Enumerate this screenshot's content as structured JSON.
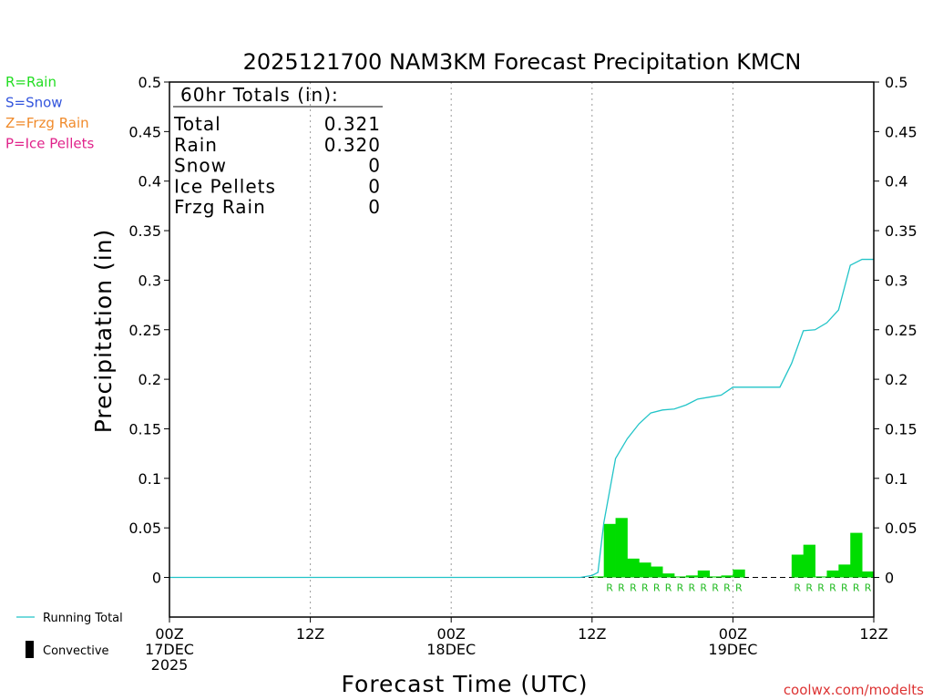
{
  "chart_data": {
    "type": "bar",
    "title": "2025121700 NAM3KM Forecast Precipitation KMCN",
    "xlabel": "Forecast Time (UTC)",
    "ylabel": "Precipitation (in)",
    "ylim": [
      -0.04,
      0.5
    ],
    "xlim_hours": [
      0,
      60
    ],
    "y_ticks": [
      0,
      0.05,
      0.1,
      0.15,
      0.2,
      0.25,
      0.3,
      0.35,
      0.4,
      0.45,
      0.5
    ],
    "y_tick_labels": [
      "0",
      "0.05",
      "0.1",
      "0.15",
      "0.2",
      "0.25",
      "0.3",
      "0.35",
      "0.4",
      "0.45",
      "0.5"
    ],
    "x_ticks": [
      {
        "hour": 0,
        "lines": [
          "00Z",
          "17DEC",
          "2025"
        ]
      },
      {
        "hour": 12,
        "lines": [
          "12Z"
        ]
      },
      {
        "hour": 24,
        "lines": [
          "00Z",
          "18DEC"
        ]
      },
      {
        "hour": 36,
        "lines": [
          "12Z"
        ]
      },
      {
        "hour": 48,
        "lines": [
          "00Z",
          "19DEC"
        ]
      },
      {
        "hour": 60,
        "lines": [
          "12Z"
        ]
      }
    ],
    "vertical_gridlines_hours": [
      12,
      24,
      36,
      48
    ],
    "bar_series": {
      "name": "Rain",
      "color": "#00dd00",
      "bars": [
        {
          "hour": 36,
          "value": 0.001,
          "label": ""
        },
        {
          "hour": 37,
          "value": 0.054,
          "label": "R"
        },
        {
          "hour": 38,
          "value": 0.06,
          "label": "R"
        },
        {
          "hour": 39,
          "value": 0.019,
          "label": "R"
        },
        {
          "hour": 40,
          "value": 0.015,
          "label": "R"
        },
        {
          "hour": 41,
          "value": 0.011,
          "label": "R"
        },
        {
          "hour": 42,
          "value": 0.004,
          "label": "R"
        },
        {
          "hour": 43,
          "value": 0.001,
          "label": "R"
        },
        {
          "hour": 44,
          "value": 0.002,
          "label": "R"
        },
        {
          "hour": 45,
          "value": 0.007,
          "label": "R"
        },
        {
          "hour": 46,
          "value": 0.001,
          "label": "R"
        },
        {
          "hour": 47,
          "value": 0.002,
          "label": "R"
        },
        {
          "hour": 48,
          "value": 0.008,
          "label": "R"
        },
        {
          "hour": 53,
          "value": 0.023,
          "label": "R"
        },
        {
          "hour": 54,
          "value": 0.033,
          "label": "R"
        },
        {
          "hour": 55,
          "value": 0.001,
          "label": "R"
        },
        {
          "hour": 56,
          "value": 0.007,
          "label": "R"
        },
        {
          "hour": 57,
          "value": 0.013,
          "label": "R"
        },
        {
          "hour": 58,
          "value": 0.045,
          "label": "R"
        },
        {
          "hour": 59,
          "value": 0.006,
          "label": "R"
        }
      ]
    },
    "line_series": {
      "name": "Running Total",
      "color": "#22c4c8",
      "points": [
        [
          0,
          0
        ],
        [
          35,
          0
        ],
        [
          36,
          0.002
        ],
        [
          36.5,
          0.005
        ],
        [
          37,
          0.055
        ],
        [
          38,
          0.12
        ],
        [
          39,
          0.14
        ],
        [
          40,
          0.155
        ],
        [
          41,
          0.166
        ],
        [
          42,
          0.169
        ],
        [
          43,
          0.17
        ],
        [
          44,
          0.174
        ],
        [
          45,
          0.18
        ],
        [
          46,
          0.182
        ],
        [
          47,
          0.184
        ],
        [
          48,
          0.192
        ],
        [
          52,
          0.192
        ],
        [
          53,
          0.216
        ],
        [
          54,
          0.249
        ],
        [
          55,
          0.25
        ],
        [
          56,
          0.257
        ],
        [
          57,
          0.27
        ],
        [
          58,
          0.315
        ],
        [
          59,
          0.321
        ],
        [
          60,
          0.321
        ]
      ]
    },
    "legend": {
      "top_left": [
        {
          "text": "R=Rain",
          "color": "#22dd22"
        },
        {
          "text": "S=Snow",
          "color": "#3355dd"
        },
        {
          "text": "Z=Frzg Rain",
          "color": "#f08a2a"
        },
        {
          "text": "P=Ice Pellets",
          "color": "#e0228a"
        }
      ],
      "bottom_left": [
        {
          "text": "Running Total",
          "symbol": "line",
          "color": "#22c4c8"
        },
        {
          "text": "Convective",
          "symbol": "box",
          "color": "#000000"
        }
      ]
    },
    "totals_box": {
      "heading": "60hr Totals (in):",
      "rows": [
        {
          "label": "Total",
          "value": "0.321"
        },
        {
          "label": "Rain",
          "value": "0.320"
        },
        {
          "label": "Snow",
          "value": "0"
        },
        {
          "label": "Ice Pellets",
          "value": "0"
        },
        {
          "label": "Frzg Rain",
          "value": "0"
        }
      ]
    },
    "credit": "coolwx.com/modelts"
  }
}
